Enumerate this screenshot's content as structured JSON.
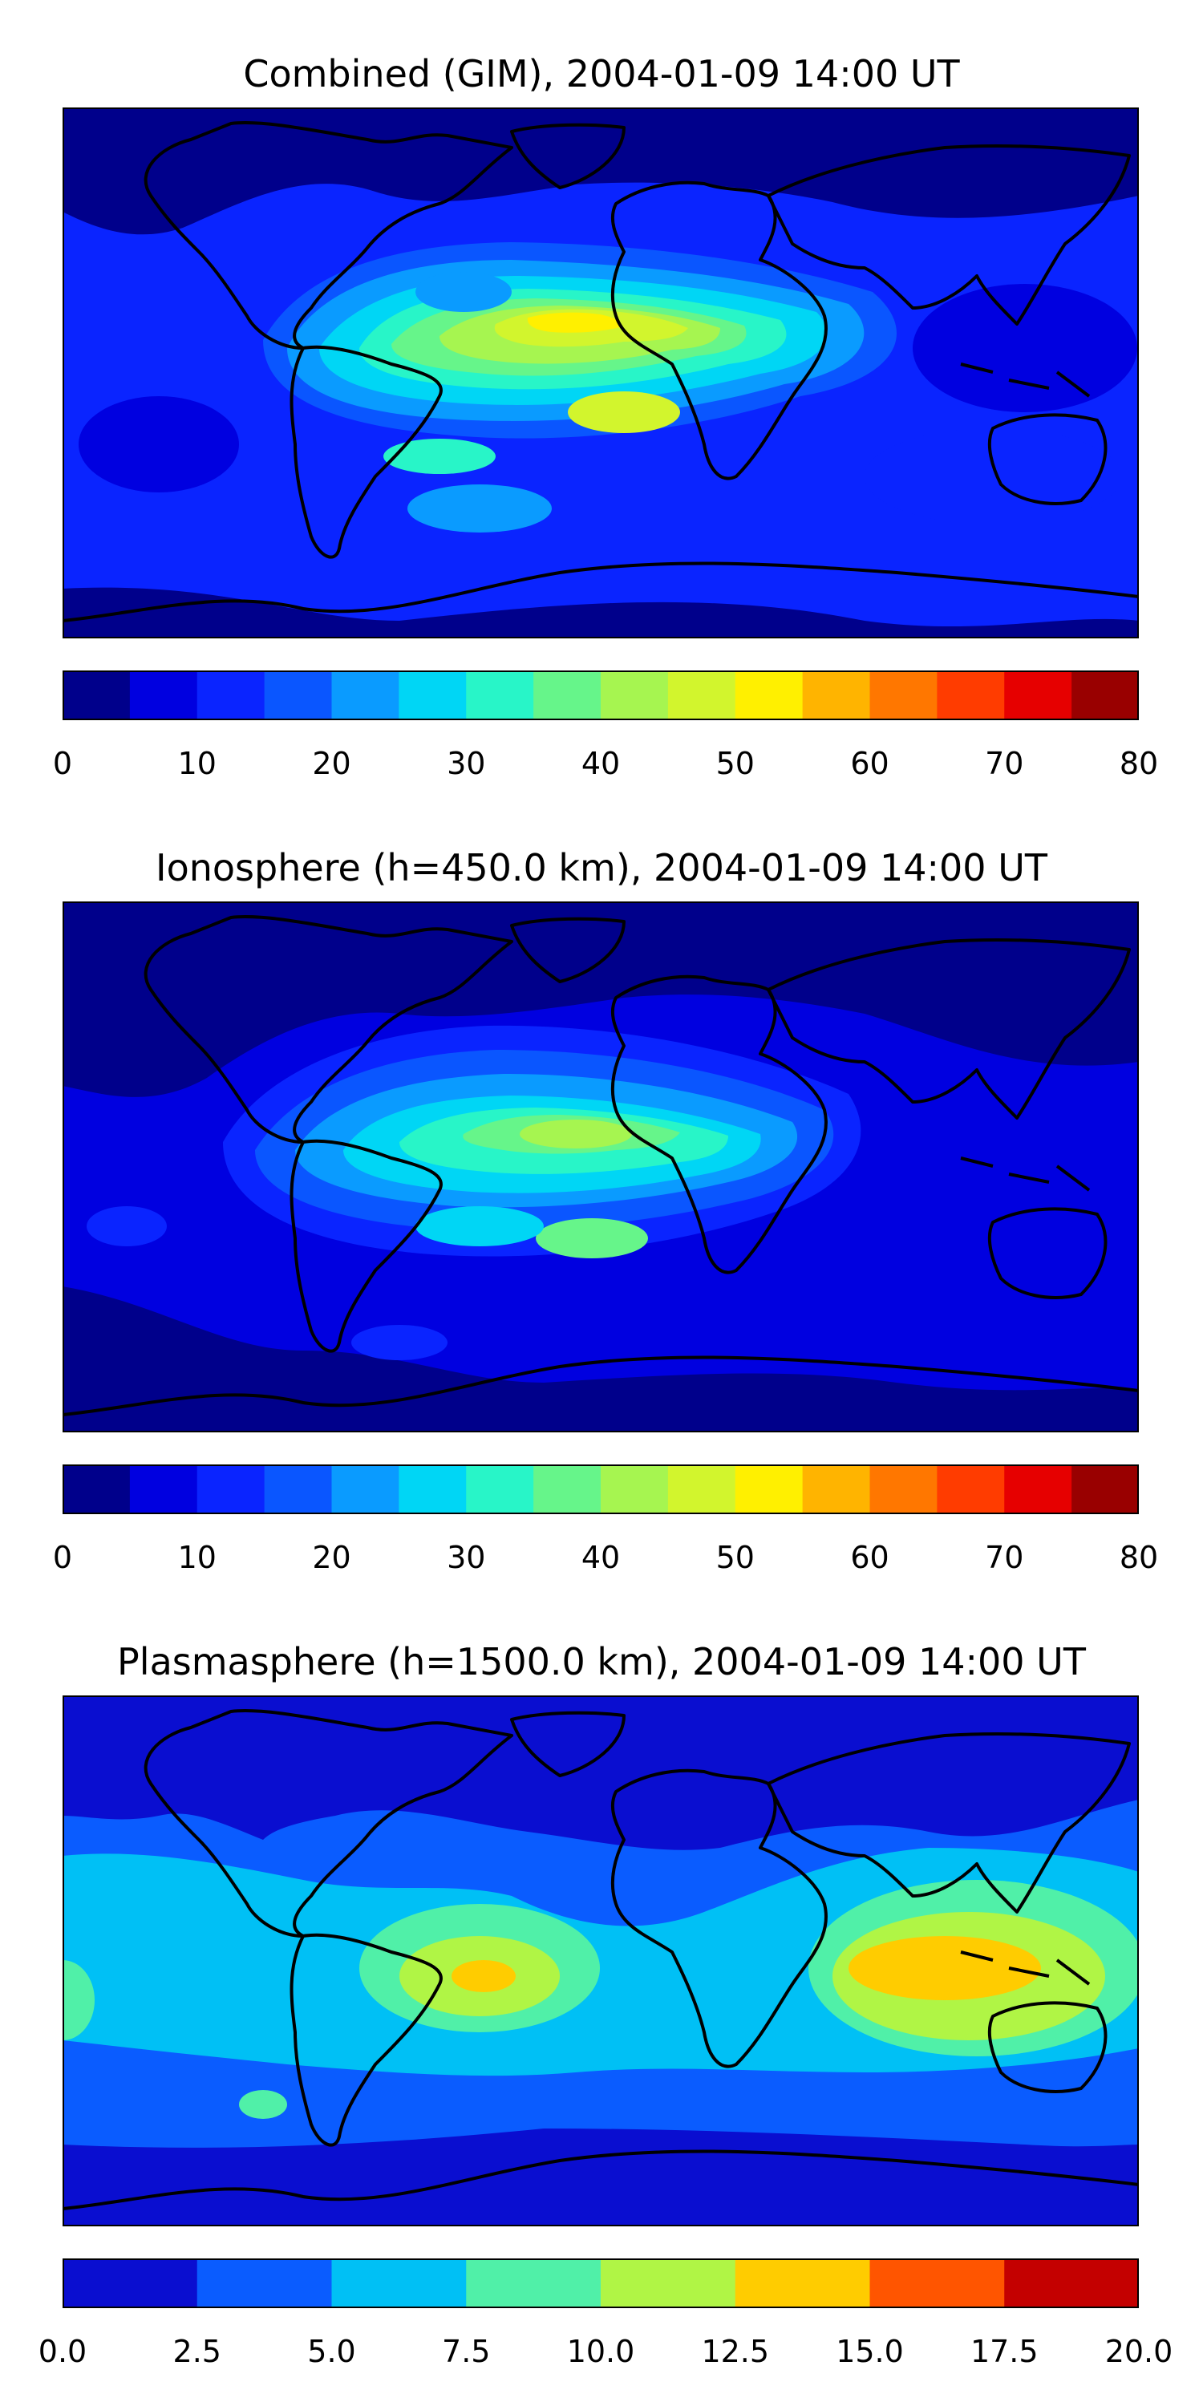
{
  "panels": [
    {
      "title": "Combined (GIM), 2004-01-09 14:00 UT",
      "colorbar": {
        "ticks": [
          "0",
          "10",
          "20",
          "30",
          "40",
          "50",
          "60",
          "70",
          "80"
        ],
        "vmin": 0,
        "vmax": 80,
        "step": 5,
        "colors": [
          "#00008b",
          "#0000e0",
          "#0a24ff",
          "#0a56ff",
          "#0a9bff",
          "#00d6f5",
          "#28f5c8",
          "#66f58a",
          "#a6f550",
          "#d2f52d",
          "#fff000",
          "#ffb400",
          "#ff7700",
          "#ff3c00",
          "#e60000",
          "#990000"
        ]
      }
    },
    {
      "title": "Ionosphere  (h=450.0 km), 2004-01-09 14:00 UT",
      "colorbar": {
        "ticks": [
          "0",
          "10",
          "20",
          "30",
          "40",
          "50",
          "60",
          "70",
          "80"
        ],
        "vmin": 0,
        "vmax": 80,
        "step": 5,
        "colors": [
          "#00008b",
          "#0000e0",
          "#0a24ff",
          "#0a56ff",
          "#0a9bff",
          "#00d6f5",
          "#28f5c8",
          "#66f58a",
          "#a6f550",
          "#d2f52d",
          "#fff000",
          "#ffb400",
          "#ff7700",
          "#ff3c00",
          "#e60000",
          "#990000"
        ]
      }
    },
    {
      "title": "Plasmasphere (h=1500.0 km), 2004-01-09 14:00 UT",
      "colorbar": {
        "ticks": [
          "0.0",
          "2.5",
          "5.0",
          "7.5",
          "10.0",
          "12.5",
          "15.0",
          "17.5",
          "20.0"
        ],
        "vmin": 0,
        "vmax": 20,
        "step": 2.5,
        "colors": [
          "#0a0ed0",
          "#0a5cff",
          "#00c0f5",
          "#50f0a8",
          "#b0f545",
          "#ffcc00",
          "#ff5500",
          "#c40000"
        ]
      }
    }
  ]
}
